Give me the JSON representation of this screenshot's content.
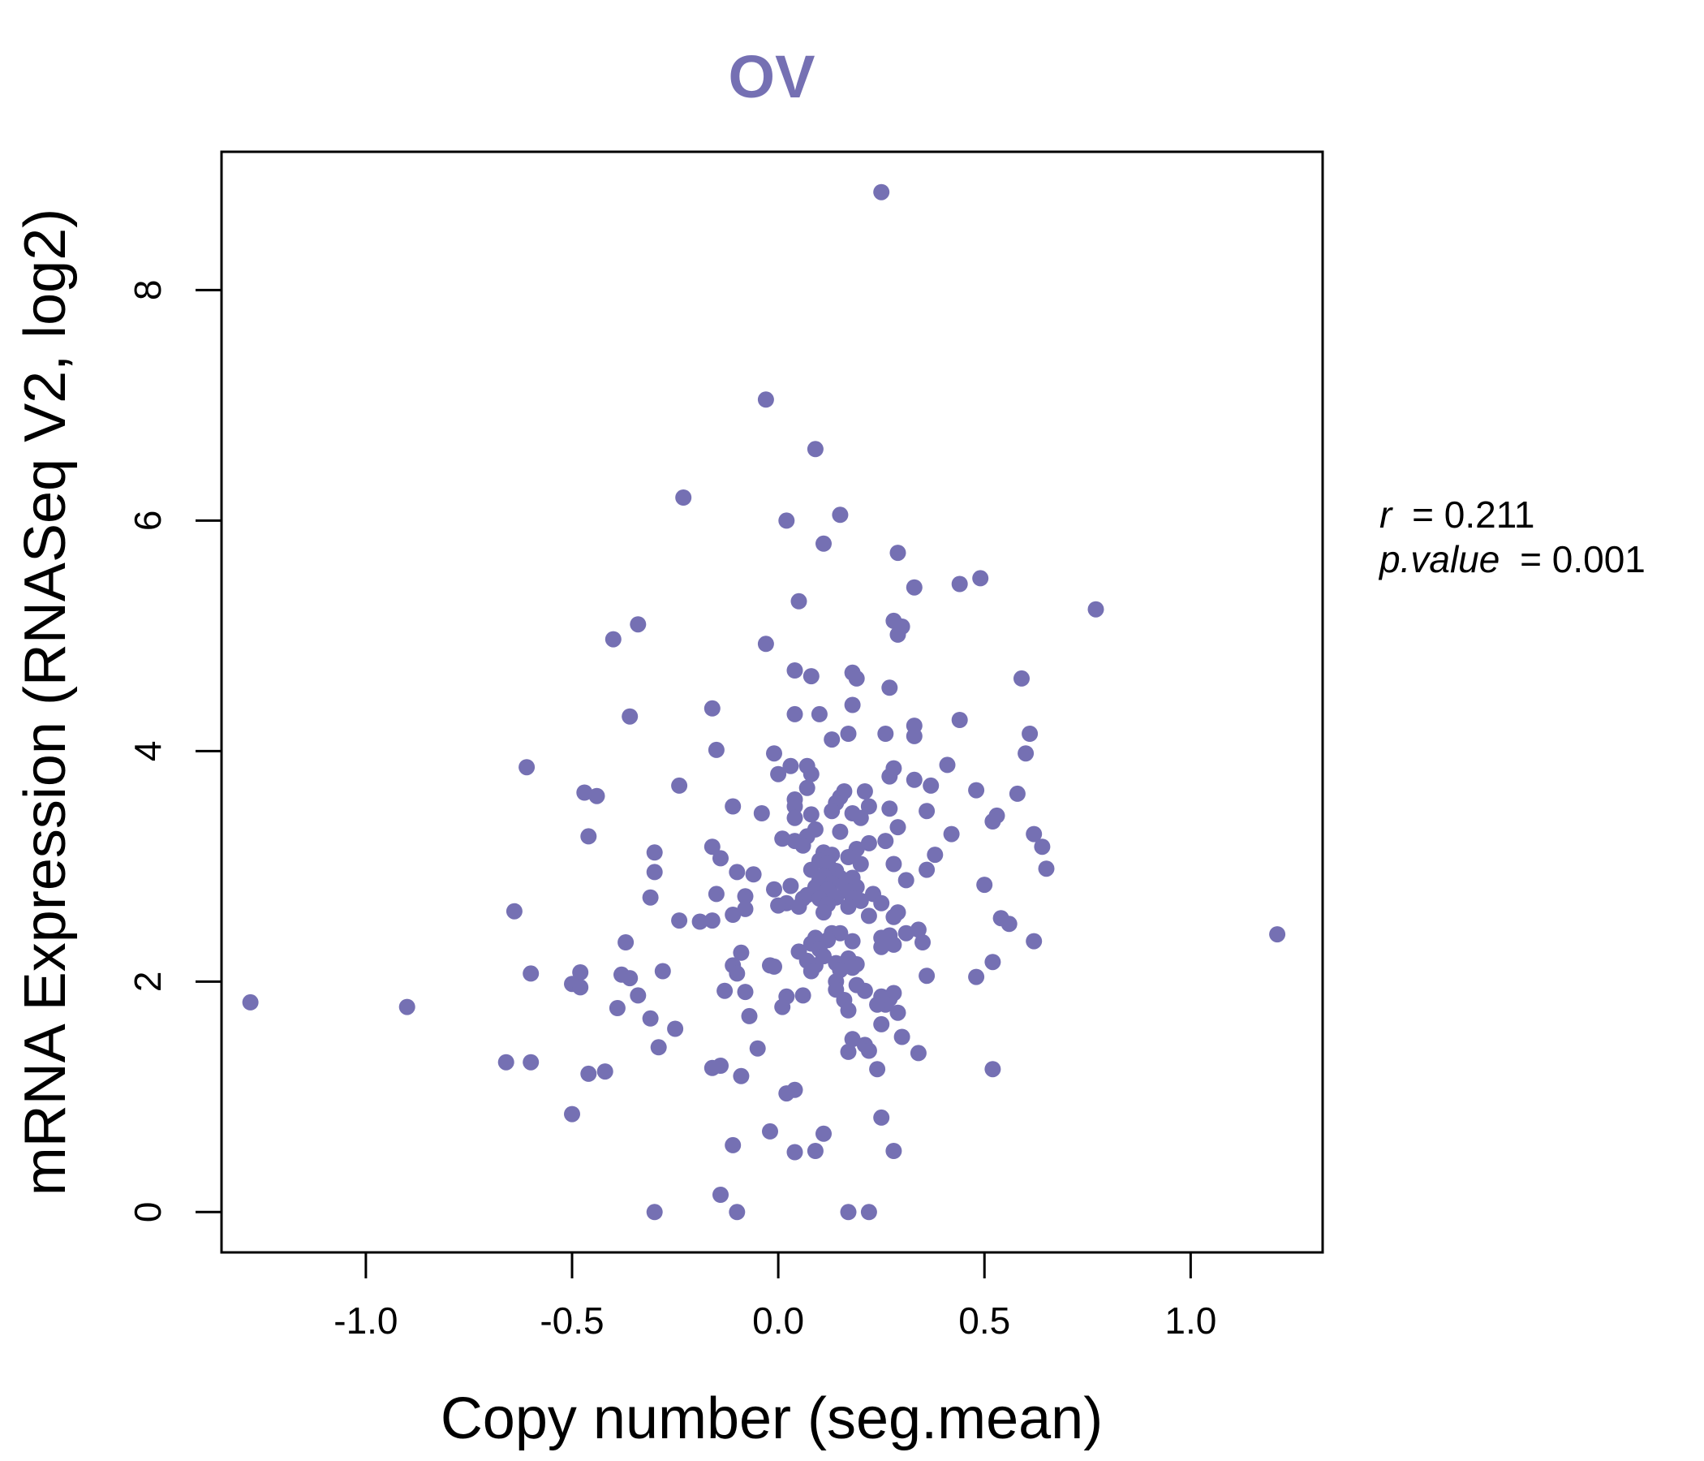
{
  "chart_data": {
    "type": "scatter",
    "title": "OV",
    "xlabel": "Copy number (seg.mean)",
    "ylabel": "mRNA Expression (RNASeq V2, log2)",
    "xlim": [
      -1.35,
      1.32
    ],
    "ylim": [
      -0.35,
      9.2
    ],
    "xticks": [
      -1.0,
      -0.5,
      0.0,
      0.5,
      1.0
    ],
    "xtick_labels": [
      "-1.0",
      "-0.5",
      "0.0",
      "0.5",
      "1.0"
    ],
    "yticks": [
      0,
      2,
      4,
      6,
      8
    ],
    "ytick_labels": [
      "0",
      "2",
      "4",
      "6",
      "8"
    ],
    "grid": false,
    "marker_color": "#7570b3",
    "title_color": "#7570b3",
    "stats": {
      "r_label": "r",
      "r_value": "= 0.211",
      "p_label": "p.value",
      "p_value": "= 0.001"
    },
    "points": [
      [
        0.25,
        8.85
      ],
      [
        -0.03,
        7.05
      ],
      [
        0.09,
        6.62
      ],
      [
        -0.23,
        6.2
      ],
      [
        0.02,
        6.0
      ],
      [
        0.15,
        6.05
      ],
      [
        0.11,
        5.8
      ],
      [
        0.29,
        5.72
      ],
      [
        0.33,
        5.42
      ],
      [
        0.44,
        5.45
      ],
      [
        0.49,
        5.5
      ],
      [
        0.77,
        5.23
      ],
      [
        0.05,
        5.3
      ],
      [
        0.28,
        5.13
      ],
      [
        0.3,
        5.08
      ],
      [
        0.29,
        5.01
      ],
      [
        -0.34,
        5.1
      ],
      [
        -0.4,
        4.97
      ],
      [
        -0.03,
        4.93
      ],
      [
        0.04,
        4.7
      ],
      [
        0.08,
        4.65
      ],
      [
        0.18,
        4.68
      ],
      [
        0.19,
        4.63
      ],
      [
        0.59,
        4.63
      ],
      [
        0.27,
        4.55
      ],
      [
        -0.16,
        4.37
      ],
      [
        -0.36,
        4.3
      ],
      [
        0.04,
        4.32
      ],
      [
        0.1,
        4.32
      ],
      [
        0.18,
        4.4
      ],
      [
        0.44,
        4.27
      ],
      [
        0.33,
        4.22
      ],
      [
        0.26,
        4.15
      ],
      [
        0.17,
        4.15
      ],
      [
        0.13,
        4.1
      ],
      [
        0.61,
        4.15
      ],
      [
        0.33,
        4.13
      ],
      [
        -0.15,
        4.01
      ],
      [
        -0.01,
        3.98
      ],
      [
        0.6,
        3.98
      ],
      [
        0.41,
        3.88
      ],
      [
        -0.61,
        3.86
      ],
      [
        0.03,
        3.87
      ],
      [
        0.07,
        3.87
      ],
      [
        0.28,
        3.85
      ],
      [
        0.0,
        3.8
      ],
      [
        0.08,
        3.8
      ],
      [
        0.27,
        3.78
      ],
      [
        0.33,
        3.75
      ],
      [
        0.37,
        3.7
      ],
      [
        -0.24,
        3.7
      ],
      [
        0.07,
        3.68
      ],
      [
        0.16,
        3.65
      ],
      [
        0.21,
        3.65
      ],
      [
        0.48,
        3.66
      ],
      [
        0.58,
        3.63
      ],
      [
        -0.47,
        3.64
      ],
      [
        -0.44,
        3.61
      ],
      [
        0.04,
        3.58
      ],
      [
        0.15,
        3.6
      ],
      [
        0.14,
        3.55
      ],
      [
        0.04,
        3.52
      ],
      [
        0.22,
        3.52
      ],
      [
        -0.11,
        3.52
      ],
      [
        0.27,
        3.5
      ],
      [
        0.36,
        3.48
      ],
      [
        0.13,
        3.48
      ],
      [
        0.08,
        3.45
      ],
      [
        -0.04,
        3.46
      ],
      [
        0.18,
        3.46
      ],
      [
        0.2,
        3.42
      ],
      [
        0.04,
        3.42
      ],
      [
        0.53,
        3.44
      ],
      [
        0.52,
        3.39
      ],
      [
        0.29,
        3.34
      ],
      [
        0.09,
        3.32
      ],
      [
        0.15,
        3.3
      ],
      [
        0.42,
        3.28
      ],
      [
        0.62,
        3.28
      ],
      [
        -0.46,
        3.26
      ],
      [
        0.07,
        3.26
      ],
      [
        0.01,
        3.24
      ],
      [
        0.04,
        3.22
      ],
      [
        0.26,
        3.22
      ],
      [
        0.22,
        3.2
      ],
      [
        0.06,
        3.18
      ],
      [
        0.64,
        3.17
      ],
      [
        -0.16,
        3.17
      ],
      [
        0.19,
        3.15
      ],
      [
        0.11,
        3.12
      ],
      [
        -0.3,
        3.12
      ],
      [
        0.13,
        3.1
      ],
      [
        0.38,
        3.1
      ],
      [
        0.17,
        3.08
      ],
      [
        -0.14,
        3.07
      ],
      [
        0.1,
        3.05
      ],
      [
        0.12,
        3.03
      ],
      [
        0.2,
        3.02
      ],
      [
        0.28,
        3.02
      ],
      [
        0.65,
        2.98
      ],
      [
        0.36,
        2.97
      ],
      [
        -0.1,
        2.95
      ],
      [
        0.08,
        2.97
      ],
      [
        0.14,
        2.96
      ],
      [
        -0.3,
        2.95
      ],
      [
        -0.06,
        2.93
      ],
      [
        0.11,
        2.92
      ],
      [
        0.15,
        2.9
      ],
      [
        0.18,
        2.9
      ],
      [
        0.31,
        2.88
      ],
      [
        0.1,
        2.88
      ],
      [
        0.13,
        2.85
      ],
      [
        0.16,
        2.84
      ],
      [
        0.5,
        2.84
      ],
      [
        0.03,
        2.83
      ],
      [
        0.09,
        2.82
      ],
      [
        0.19,
        2.82
      ],
      [
        -0.01,
        2.8
      ],
      [
        0.12,
        2.8
      ],
      [
        0.17,
        2.78
      ],
      [
        -0.15,
        2.76
      ],
      [
        0.07,
        2.75
      ],
      [
        0.23,
        2.76
      ],
      [
        -0.08,
        2.74
      ],
      [
        0.14,
        2.73
      ],
      [
        0.1,
        2.72
      ],
      [
        0.06,
        2.72
      ],
      [
        -0.31,
        2.73
      ],
      [
        0.18,
        2.72
      ],
      [
        0.2,
        2.7
      ],
      [
        0.02,
        2.68
      ],
      [
        0.25,
        2.68
      ],
      [
        0.12,
        2.67
      ],
      [
        0.0,
        2.66
      ],
      [
        0.17,
        2.65
      ],
      [
        0.05,
        2.65
      ],
      [
        -0.08,
        2.63
      ],
      [
        -0.64,
        2.61
      ],
      [
        0.29,
        2.6
      ],
      [
        0.11,
        2.6
      ],
      [
        -0.11,
        2.58
      ],
      [
        0.22,
        2.57
      ],
      [
        0.28,
        2.56
      ],
      [
        0.54,
        2.55
      ],
      [
        0.56,
        2.5
      ],
      [
        -0.24,
        2.53
      ],
      [
        -0.16,
        2.53
      ],
      [
        -0.19,
        2.52
      ],
      [
        0.34,
        2.45
      ],
      [
        0.13,
        2.42
      ],
      [
        0.15,
        2.42
      ],
      [
        0.31,
        2.42
      ],
      [
        0.27,
        2.4
      ],
      [
        0.09,
        2.38
      ],
      [
        0.25,
        2.38
      ],
      [
        1.21,
        2.41
      ],
      [
        0.12,
        2.36
      ],
      [
        0.18,
        2.35
      ],
      [
        0.62,
        2.35
      ],
      [
        -0.37,
        2.34
      ],
      [
        0.35,
        2.34
      ],
      [
        0.08,
        2.33
      ],
      [
        0.28,
        2.32
      ],
      [
        0.25,
        2.3
      ],
      [
        0.1,
        2.28
      ],
      [
        0.05,
        2.26
      ],
      [
        -0.09,
        2.25
      ],
      [
        0.11,
        2.22
      ],
      [
        0.17,
        2.2
      ],
      [
        0.07,
        2.18
      ],
      [
        0.52,
        2.17
      ],
      [
        0.14,
        2.16
      ],
      [
        0.19,
        2.15
      ],
      [
        -0.11,
        2.14
      ],
      [
        0.09,
        2.14
      ],
      [
        -0.02,
        2.14
      ],
      [
        -0.01,
        2.13
      ],
      [
        0.18,
        2.12
      ],
      [
        0.15,
        2.1
      ],
      [
        -0.28,
        2.09
      ],
      [
        0.08,
        2.09
      ],
      [
        -0.48,
        2.08
      ],
      [
        -0.1,
        2.07
      ],
      [
        -0.6,
        2.07
      ],
      [
        -0.38,
        2.06
      ],
      [
        0.36,
        2.05
      ],
      [
        0.48,
        2.04
      ],
      [
        -0.36,
        2.03
      ],
      [
        0.14,
        2.0
      ],
      [
        -0.5,
        1.98
      ],
      [
        0.19,
        1.97
      ],
      [
        -0.48,
        1.95
      ],
      [
        0.14,
        1.93
      ],
      [
        0.21,
        1.92
      ],
      [
        -0.13,
        1.92
      ],
      [
        -0.08,
        1.91
      ],
      [
        0.28,
        1.9
      ],
      [
        -0.34,
        1.88
      ],
      [
        0.06,
        1.88
      ],
      [
        0.02,
        1.87
      ],
      [
        0.25,
        1.87
      ],
      [
        0.27,
        1.85
      ],
      [
        0.16,
        1.84
      ],
      [
        0.26,
        1.8
      ],
      [
        0.24,
        1.8
      ],
      [
        -1.28,
        1.82
      ],
      [
        -0.9,
        1.78
      ],
      [
        0.01,
        1.78
      ],
      [
        -0.39,
        1.77
      ],
      [
        0.17,
        1.75
      ],
      [
        0.29,
        1.73
      ],
      [
        -0.07,
        1.7
      ],
      [
        -0.31,
        1.68
      ],
      [
        0.25,
        1.63
      ],
      [
        -0.25,
        1.59
      ],
      [
        0.3,
        1.52
      ],
      [
        0.18,
        1.5
      ],
      [
        0.21,
        1.45
      ],
      [
        -0.05,
        1.42
      ],
      [
        -0.29,
        1.43
      ],
      [
        0.17,
        1.39
      ],
      [
        0.22,
        1.4
      ],
      [
        0.34,
        1.38
      ],
      [
        -0.66,
        1.3
      ],
      [
        -0.6,
        1.3
      ],
      [
        -0.14,
        1.27
      ],
      [
        -0.16,
        1.25
      ],
      [
        0.24,
        1.24
      ],
      [
        0.52,
        1.24
      ],
      [
        -0.42,
        1.22
      ],
      [
        -0.46,
        1.2
      ],
      [
        -0.09,
        1.18
      ],
      [
        0.04,
        1.06
      ],
      [
        0.02,
        1.03
      ],
      [
        -0.5,
        0.85
      ],
      [
        0.25,
        0.82
      ],
      [
        -0.02,
        0.7
      ],
      [
        0.11,
        0.68
      ],
      [
        -0.11,
        0.58
      ],
      [
        0.09,
        0.53
      ],
      [
        0.04,
        0.52
      ],
      [
        0.28,
        0.53
      ],
      [
        -0.14,
        0.15
      ],
      [
        -0.3,
        0.0
      ],
      [
        -0.1,
        0.0
      ],
      [
        0.17,
        0.0
      ],
      [
        0.22,
        0.0
      ]
    ]
  }
}
